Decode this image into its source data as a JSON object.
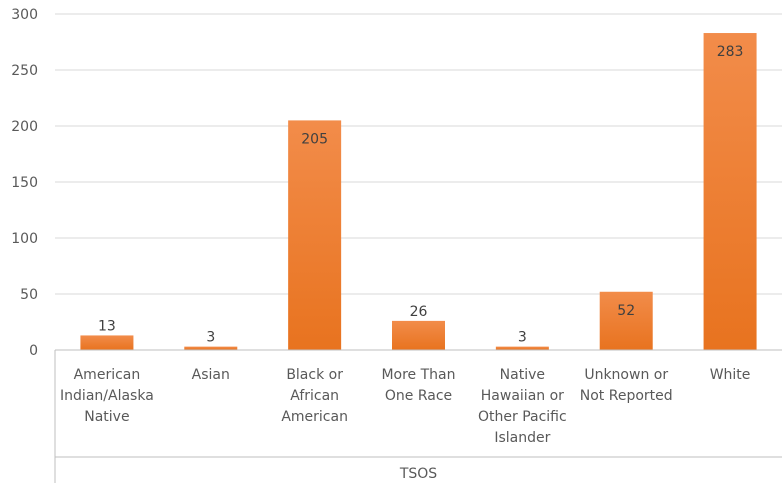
{
  "chart_data": {
    "type": "bar",
    "categories": [
      [
        "American",
        "Indian/Alaska",
        "Native"
      ],
      [
        "Asian"
      ],
      [
        "Black or",
        "African",
        "American"
      ],
      [
        "More Than",
        "One Race"
      ],
      [
        "Native",
        "Hawaiian or",
        "Other Pacific",
        "Islander"
      ],
      [
        "Unknown or",
        "Not Reported"
      ],
      [
        "White"
      ]
    ],
    "values": [
      13,
      3,
      205,
      26,
      3,
      52,
      283
    ],
    "data_labels": [
      "13",
      "3",
      "205",
      "26",
      "3",
      "52",
      "283"
    ],
    "group_label": "TSOS",
    "title": "",
    "xlabel": "",
    "ylabel": "",
    "ylim": [
      0,
      300
    ],
    "yticks": [
      0,
      50,
      100,
      150,
      200,
      250,
      300
    ],
    "grid": true,
    "colors": {
      "bar_top": "#F28C4A",
      "bar_bottom": "#E8731F",
      "grid": "#D9D9D9",
      "axis": "#BFBFBF"
    }
  }
}
